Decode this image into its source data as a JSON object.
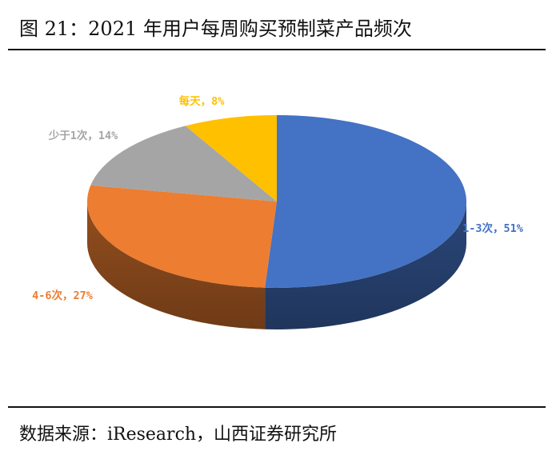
{
  "header": {
    "title": "图 21：2021 年用户每周购买预制菜产品频次"
  },
  "footer": {
    "source": "数据来源：iResearch，山西证券研究所"
  },
  "chart_data": {
    "type": "pie",
    "categories": [
      "1-3次",
      "4-6次",
      "少于1次",
      "每天"
    ],
    "values": [
      51,
      27,
      14,
      8
    ],
    "unit": "%",
    "labels": [
      "1-3次，51%",
      "4-6次，27%",
      "少于1次，14%",
      "每天，8%"
    ],
    "colors": [
      "#4472C4",
      "#ED7D31",
      "#A5A5A5",
      "#FFC000"
    ],
    "style": "3d-pie",
    "title": "",
    "legend": "none"
  }
}
